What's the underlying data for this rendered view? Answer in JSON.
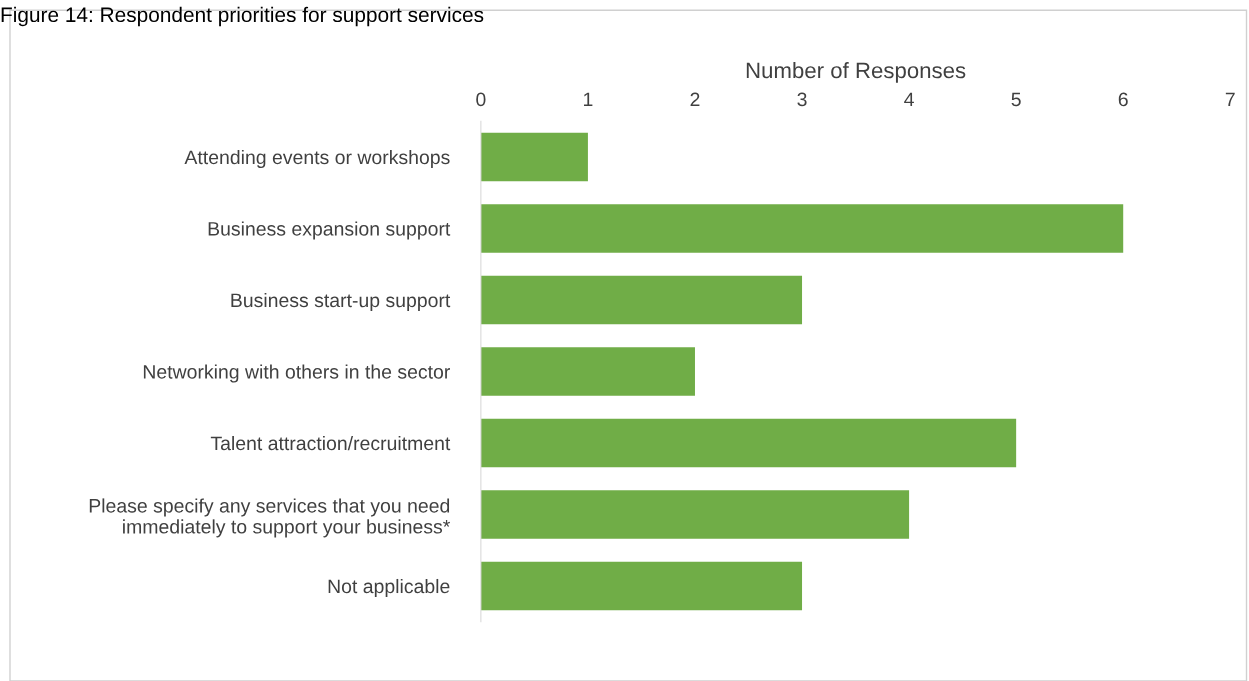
{
  "chart_data": {
    "type": "bar",
    "orientation": "horizontal",
    "title": "Figure 14: Respondent priorities for support services",
    "xlabel": "Number of Responses",
    "categories": [
      "Attending events or workshops",
      "Business expansion support",
      "Business start-up support",
      "Networking with others in the sector",
      "Talent attraction/recruitment",
      "Please specify any services that you need\nimmediately to support your business*",
      "Not applicable"
    ],
    "values": [
      1,
      6,
      3,
      2,
      5,
      4,
      3
    ],
    "color": "#70ad47",
    "xlim": [
      0,
      7
    ],
    "xticks": [
      0,
      1,
      2,
      3,
      4,
      5,
      6,
      7
    ]
  }
}
